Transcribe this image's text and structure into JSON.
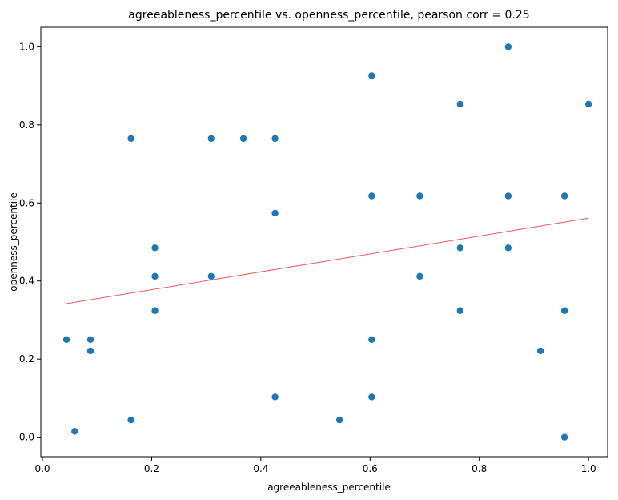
{
  "chart_data": {
    "type": "scatter",
    "title": "agreeableness_percentile vs. openness_percentile, pearson corr = 0.25",
    "xlabel": "agreeableness_percentile",
    "ylabel": "openness_percentile",
    "xlim": [
      -0.003,
      1.035
    ],
    "ylim": [
      -0.05,
      1.05
    ],
    "xticks": [
      "0.0",
      "0.2",
      "0.4",
      "0.6",
      "0.8",
      "1.0"
    ],
    "yticks": [
      "0.0",
      "0.2",
      "0.4",
      "0.6",
      "0.8",
      "1.0"
    ],
    "grid": false,
    "point_color": "#1f77b4",
    "trend_color": "#e8595c",
    "trendline": {
      "x": [
        0.044,
        1.0
      ],
      "y": [
        0.342,
        0.561
      ]
    },
    "points": [
      {
        "x": 0.044,
        "y": 0.25
      },
      {
        "x": 0.059,
        "y": 0.015
      },
      {
        "x": 0.088,
        "y": 0.25
      },
      {
        "x": 0.088,
        "y": 0.221
      },
      {
        "x": 0.162,
        "y": 0.765
      },
      {
        "x": 0.162,
        "y": 0.044
      },
      {
        "x": 0.206,
        "y": 0.485
      },
      {
        "x": 0.206,
        "y": 0.412
      },
      {
        "x": 0.206,
        "y": 0.324
      },
      {
        "x": 0.309,
        "y": 0.765
      },
      {
        "x": 0.309,
        "y": 0.412
      },
      {
        "x": 0.368,
        "y": 0.765
      },
      {
        "x": 0.426,
        "y": 0.765
      },
      {
        "x": 0.426,
        "y": 0.574
      },
      {
        "x": 0.426,
        "y": 0.103
      },
      {
        "x": 0.544,
        "y": 0.044
      },
      {
        "x": 0.603,
        "y": 0.926
      },
      {
        "x": 0.603,
        "y": 0.618
      },
      {
        "x": 0.603,
        "y": 0.25
      },
      {
        "x": 0.603,
        "y": 0.103
      },
      {
        "x": 0.691,
        "y": 0.618
      },
      {
        "x": 0.691,
        "y": 0.412
      },
      {
        "x": 0.765,
        "y": 0.853
      },
      {
        "x": 0.765,
        "y": 0.485
      },
      {
        "x": 0.765,
        "y": 0.324
      },
      {
        "x": 0.853,
        "y": 1.0
      },
      {
        "x": 0.853,
        "y": 0.618
      },
      {
        "x": 0.853,
        "y": 0.485
      },
      {
        "x": 0.912,
        "y": 0.221
      },
      {
        "x": 0.956,
        "y": 0.618
      },
      {
        "x": 0.956,
        "y": 0.324
      },
      {
        "x": 0.956,
        "y": 0.0
      },
      {
        "x": 1.0,
        "y": 0.853
      }
    ]
  }
}
